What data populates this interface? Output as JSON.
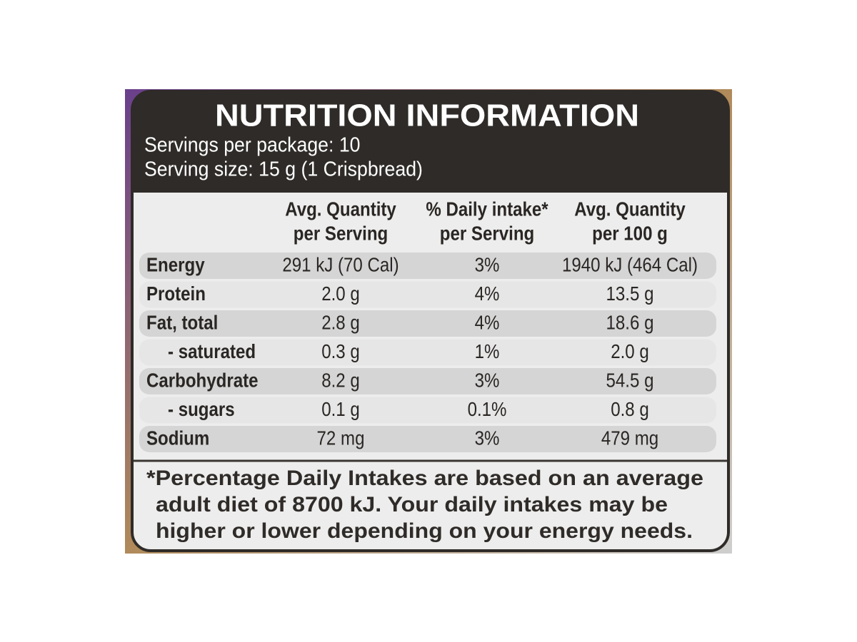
{
  "header": {
    "title": "NUTRITION INFORMATION",
    "servings": "Servings per package: 10",
    "serving_size": "Serving size: 15 g (1 Crispbread)"
  },
  "table": {
    "columns": [
      [
        "Avg. Quantity",
        "per Serving"
      ],
      [
        "% Daily intake*",
        "per Serving"
      ],
      [
        "Avg. Quantity",
        "per 100 g"
      ]
    ],
    "rows": [
      [
        "Energy",
        "291 kJ (70 Cal)",
        "3%",
        "1940 kJ (464 Cal)"
      ],
      [
        "Protein",
        "2.0 g",
        "4%",
        "13.5 g"
      ],
      [
        "Fat, total",
        "2.8 g",
        "4%",
        "18.6 g"
      ],
      [
        "- saturated",
        "0.3 g",
        "1%",
        "2.0 g"
      ],
      [
        "Carbohydrate",
        "8.2 g",
        "3%",
        "54.5 g"
      ],
      [
        "- sugars",
        "0.1 g",
        "0.1%",
        "0.8 g"
      ],
      [
        "Sodium",
        "72 mg",
        "3%",
        "479 mg"
      ]
    ]
  },
  "footnote": [
    "*Percentage Daily Intakes are based on an average",
    "adult diet of 8700 kJ. Your daily intakes may be",
    "higher or lower depending on your energy needs."
  ]
}
